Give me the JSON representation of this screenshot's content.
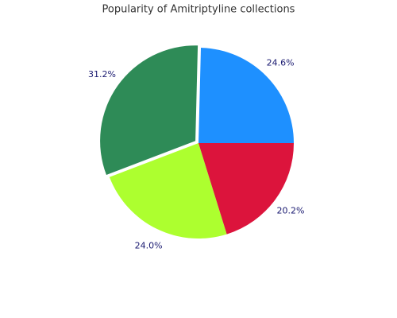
{
  "chart_data": {
    "type": "pie",
    "title": "Popularity of Amitriptyline collections",
    "values": [
      24.6,
      31.2,
      24.0,
      20.2
    ],
    "value_labels": [
      "24.6%",
      "31.2%",
      "24.0%",
      "20.2%"
    ],
    "colors": [
      "#1e90ff",
      "#2e8b57",
      "#adff2f",
      "#dc143c"
    ],
    "explode": [
      0,
      0.04,
      0,
      0
    ],
    "label_color": "#191970"
  }
}
